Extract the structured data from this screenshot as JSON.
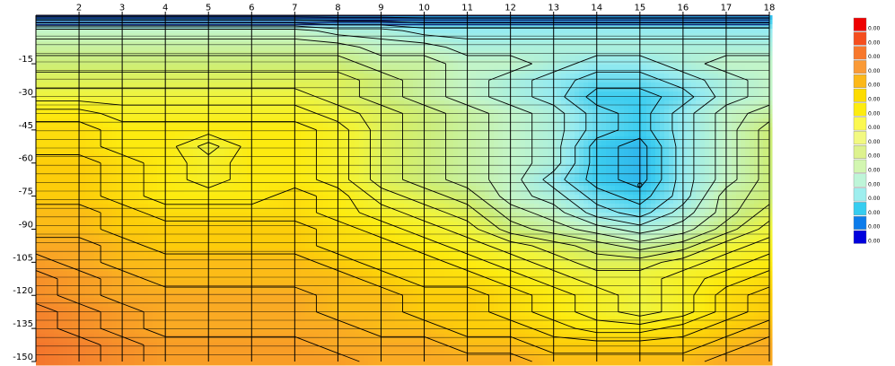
{
  "chart_data": {
    "type": "heatmap",
    "x_ticks": [
      2,
      3,
      4,
      5,
      6,
      7,
      8,
      9,
      10,
      11,
      12,
      13,
      14,
      15,
      16,
      17,
      18
    ],
    "y_ticks": [
      -15,
      -30,
      -45,
      -60,
      -75,
      -90,
      -105,
      -120,
      -135,
      -150
    ],
    "xlim": [
      1,
      18
    ],
    "ylim": [
      -150,
      7
    ],
    "x": [
      1,
      2,
      3,
      4,
      5,
      6,
      7,
      8,
      9,
      10,
      11,
      12,
      13,
      14,
      15,
      16,
      17,
      18
    ],
    "y": [
      7,
      0,
      -7.5,
      -15,
      -22.5,
      -30,
      -37.5,
      -45,
      -52.5,
      -60,
      -67.5,
      -75,
      -82.5,
      -90,
      -97.5,
      -105,
      -112.5,
      -120,
      -127.5,
      -135,
      -142.5,
      -150
    ],
    "values": [
      [
        11,
        11,
        11,
        11,
        11,
        11,
        11,
        11,
        11,
        11,
        11,
        11,
        11,
        11,
        11,
        11,
        11,
        11
      ],
      [
        8.5,
        8.5,
        8.5,
        8.5,
        8.5,
        8.5,
        8.5,
        9,
        9,
        9.5,
        9.5,
        9.5,
        9.5,
        9.5,
        9.5,
        9.5,
        9.5,
        9.5
      ],
      [
        8,
        8,
        8,
        8,
        8,
        8,
        8,
        8,
        8.5,
        8.5,
        9,
        9,
        9,
        9,
        9,
        9,
        9,
        9
      ],
      [
        7.5,
        7.5,
        7.5,
        7.5,
        7.5,
        7.5,
        7.5,
        7.5,
        8,
        8,
        8.5,
        8.5,
        9,
        9.5,
        9.5,
        9,
        8.5,
        8.5
      ],
      [
        7,
        7,
        7,
        7,
        7,
        7,
        7,
        7,
        7.5,
        8,
        8.5,
        9,
        9.5,
        10,
        10,
        9.5,
        9,
        8.5
      ],
      [
        6.5,
        6.5,
        6.5,
        6.5,
        6.5,
        6.5,
        6.5,
        7,
        7.5,
        8,
        8.5,
        9,
        9.5,
        10.5,
        10.5,
        10,
        9,
        8.5
      ],
      [
        5.5,
        5.5,
        6,
        6,
        6,
        6,
        6,
        6.5,
        7,
        7.5,
        8,
        8.5,
        9,
        10,
        10.5,
        9.5,
        8.5,
        8
      ],
      [
        5,
        5,
        5.5,
        5.5,
        5.5,
        5.5,
        5.5,
        6,
        7,
        7.5,
        8,
        8.5,
        9,
        10,
        10.5,
        9.5,
        8.5,
        7.5
      ],
      [
        5,
        5,
        5.5,
        5.5,
        6.5,
        5.5,
        5.5,
        6,
        7,
        7.5,
        8,
        8.5,
        9,
        10.5,
        11,
        9.5,
        8.5,
        7.5
      ],
      [
        4.5,
        4.5,
        5,
        5.5,
        6,
        5.5,
        5.5,
        6,
        7,
        7.5,
        8,
        8.5,
        9,
        10.5,
        11,
        9.5,
        8.5,
        7.5
      ],
      [
        4.5,
        4.5,
        5,
        5.5,
        6,
        5.5,
        5.5,
        6,
        7,
        7.5,
        8,
        8.5,
        9.5,
        10.5,
        11,
        9.5,
        8.5,
        7.5
      ],
      [
        4.5,
        4.5,
        5,
        5.5,
        5.5,
        5.5,
        5,
        5.5,
        6.5,
        7,
        7.5,
        8.5,
        9,
        10,
        10.5,
        9.5,
        8,
        7.5
      ],
      [
        4,
        4,
        4.5,
        5,
        5,
        5,
        5,
        5.5,
        6,
        6.5,
        7,
        8,
        8.5,
        9.5,
        10,
        9,
        8,
        7
      ],
      [
        4,
        4,
        4.5,
        4.5,
        4.5,
        4.5,
        4.5,
        5,
        5.5,
        6,
        6.5,
        7.5,
        8,
        8.5,
        9,
        8.5,
        7.5,
        6.5
      ],
      [
        3.5,
        3.5,
        4,
        4.5,
        4.5,
        4.5,
        4.5,
        5,
        5,
        5.5,
        6,
        6.5,
        7,
        7.5,
        8,
        7.5,
        6.5,
        6
      ],
      [
        3,
        3.5,
        4,
        4,
        4,
        4,
        4,
        4.5,
        5,
        5,
        5.5,
        6,
        6.5,
        7,
        7,
        6.5,
        6,
        5.5
      ],
      [
        2.5,
        3,
        3.5,
        4,
        4,
        4,
        4,
        4,
        4.5,
        5,
        5,
        5.5,
        6,
        6.5,
        6.5,
        6,
        5.5,
        5
      ],
      [
        2.5,
        3,
        3.5,
        3.5,
        3.5,
        3.5,
        3.5,
        4,
        4,
        4.5,
        4.5,
        5,
        5.5,
        6,
        6.5,
        6,
        5,
        4.5
      ],
      [
        2,
        2.5,
        3,
        3.5,
        3.5,
        3.5,
        3.5,
        4,
        4,
        4.5,
        4.5,
        5,
        5.5,
        6,
        6.5,
        6,
        5,
        4.5
      ],
      [
        2,
        2.5,
        3,
        3.5,
        3.5,
        3.5,
        3.5,
        3.5,
        4,
        4,
        4.5,
        4.5,
        5,
        5.5,
        5.5,
        5,
        4.5,
        4
      ],
      [
        1.5,
        2,
        2.5,
        3,
        3,
        3,
        3,
        3.5,
        3.5,
        3.5,
        4,
        4,
        4.5,
        4.5,
        4.5,
        4.5,
        4,
        3.5
      ],
      [
        1.5,
        2,
        2.5,
        3,
        3,
        3,
        3,
        3,
        3.5,
        3.5,
        3.5,
        3.5,
        4,
        4,
        4,
        4,
        3.5,
        3.5
      ]
    ],
    "legend": {
      "colors": [
        "#ee0000",
        "#f54e1e",
        "#f8782c",
        "#fa9a36",
        "#fcb818",
        "#fddc00",
        "#fdec10",
        "#fbf850",
        "#f2f980",
        "#ddf28e",
        "#d2f6b0",
        "#bef5d8",
        "#9eeeee",
        "#36cdf0",
        "#0c7ceb",
        "#0000dd"
      ],
      "labels": [
        "0.00",
        "0.00",
        "0.00",
        "0.00",
        "0.00",
        "0.00",
        "0.00",
        "0.00",
        "0.00",
        "0.00",
        "0.00",
        "0.00",
        "0.00",
        "0.00",
        "0.00",
        "0.00"
      ]
    }
  }
}
